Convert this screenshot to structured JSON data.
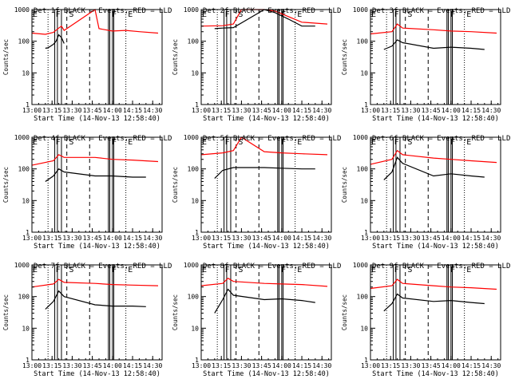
{
  "figure": {
    "x_ticks": [
      "13:00",
      "13:15",
      "13:30",
      "13:45",
      "14:00",
      "14:15",
      "14:30"
    ],
    "y_ticks": [
      "1",
      "10",
      "100",
      "1000"
    ],
    "colors": {
      "events": "#000000",
      "lld": "#ff0000",
      "axes": "#000000"
    }
  },
  "chart_data": [
    {
      "type": "line",
      "title": "Det 1f BLACK = Events, RED = LLD",
      "xlabel": "Start Time (14-Nov-13 12:58:40)",
      "ylabel": "Counts/sec",
      "yscale": "log",
      "xlim": [
        "13:00",
        "14:37"
      ],
      "ylim": [
        1,
        1000
      ],
      "band_labels": [
        "E",
        "F",
        "S",
        "F",
        "E"
      ],
      "series": [
        {
          "name": "BLACK = Events",
          "x": [
            "13:10",
            "13:12",
            "13:14",
            "13:16",
            "13:18",
            "13:20",
            "13:22",
            "13:24"
          ],
          "y": [
            60,
            62,
            70,
            80,
            100,
            160,
            130,
            85
          ]
        },
        {
          "name": "RED = LLD",
          "x": [
            "13:00",
            "13:10",
            "13:16",
            "13:20",
            "13:22",
            "13:24",
            "13:47",
            "13:50",
            "14:00",
            "14:10",
            "14:20",
            "14:34"
          ],
          "y": [
            180,
            165,
            190,
            260,
            300,
            220,
            1000,
            250,
            210,
            220,
            200,
            180
          ]
        }
      ]
    },
    {
      "type": "line",
      "title": "Det 2f BLACK = Events, RED = LLD",
      "xlabel": "Start Time (14-Nov-13 12:58:40)",
      "ylabel": "Counts/sec",
      "yscale": "log",
      "xlim": [
        "13:00",
        "14:37"
      ],
      "ylim": [
        1,
        1000
      ],
      "band_labels": [
        "E",
        "F",
        "S",
        "F",
        "E"
      ],
      "series": [
        {
          "name": "BLACK = Events",
          "x": [
            "13:10",
            "13:16",
            "13:24",
            "13:47",
            "13:55",
            "14:05",
            "14:15",
            "14:25"
          ],
          "y": [
            250,
            260,
            270,
            1000,
            800,
            500,
            300,
            300
          ]
        },
        {
          "name": "RED = LLD",
          "x": [
            "13:00",
            "13:16",
            "13:24",
            "13:30",
            "13:47",
            "13:55",
            "14:05",
            "14:15",
            "14:34"
          ],
          "y": [
            300,
            310,
            350,
            1000,
            1000,
            900,
            600,
            400,
            350
          ]
        }
      ]
    },
    {
      "type": "line",
      "title": "Det 3f BLACK = Events, RED = LLD",
      "xlabel": "Start Time (14-Nov-13 12:58:40)",
      "ylabel": "Counts/sec",
      "yscale": "log",
      "xlim": [
        "13:00",
        "14:37"
      ],
      "ylim": [
        1,
        1000
      ],
      "band_labels": [
        "E",
        "F",
        "S",
        "F",
        "E"
      ],
      "series": [
        {
          "name": "BLACK = Events",
          "x": [
            "13:10",
            "13:16",
            "13:20",
            "13:24",
            "13:47",
            "14:00",
            "14:15",
            "14:25"
          ],
          "y": [
            55,
            70,
            110,
            90,
            60,
            65,
            60,
            55
          ]
        },
        {
          "name": "RED = LLD",
          "x": [
            "13:00",
            "13:16",
            "13:20",
            "13:24",
            "13:47",
            "14:00",
            "14:15",
            "14:34"
          ],
          "y": [
            170,
            200,
            350,
            260,
            230,
            210,
            200,
            180
          ]
        }
      ]
    },
    {
      "type": "line",
      "title": "Det 4f BLACK = Events, RED = LLD",
      "xlabel": "Start Time (14-Nov-13 12:58:40)",
      "ylabel": "Counts/sec",
      "yscale": "log",
      "xlim": [
        "13:00",
        "14:37"
      ],
      "ylim": [
        1,
        1000
      ],
      "band_labels": [
        "E",
        "F",
        "S",
        "F",
        "E"
      ],
      "series": [
        {
          "name": "BLACK = Events",
          "x": [
            "13:10",
            "13:16",
            "13:20",
            "13:24",
            "13:47",
            "14:00",
            "14:15",
            "14:25"
          ],
          "y": [
            40,
            60,
            100,
            80,
            60,
            60,
            55,
            55
          ]
        },
        {
          "name": "RED = LLD",
          "x": [
            "13:00",
            "13:16",
            "13:20",
            "13:24",
            "13:47",
            "14:00",
            "14:15",
            "14:34"
          ],
          "y": [
            130,
            180,
            280,
            230,
            230,
            200,
            190,
            170
          ]
        }
      ]
    },
    {
      "type": "line",
      "title": "Det 5f BLACK = Events, RED = LLD",
      "xlabel": "Start Time (14-Nov-13 12:58:40)",
      "ylabel": "Counts/sec",
      "yscale": "log",
      "xlim": [
        "13:00",
        "14:37"
      ],
      "ylim": [
        1,
        1000
      ],
      "band_labels": [
        "E",
        "F",
        "S",
        "F",
        "E"
      ],
      "series": [
        {
          "name": "BLACK = Events",
          "x": [
            "13:10",
            "13:16",
            "13:24",
            "13:47",
            "14:00",
            "14:15",
            "14:25"
          ],
          "y": [
            50,
            90,
            110,
            110,
            105,
            100,
            100
          ]
        },
        {
          "name": "RED = LLD",
          "x": [
            "13:00",
            "13:16",
            "13:24",
            "13:30",
            "13:47",
            "14:00",
            "14:15",
            "14:34"
          ],
          "y": [
            280,
            320,
            380,
            1000,
            350,
            320,
            300,
            280
          ]
        }
      ]
    },
    {
      "type": "line",
      "title": "Det 6f BLACK = Events, RED = LLD",
      "xlabel": "Start Time (14-Nov-13 12:58:40)",
      "ylabel": "Counts/sec",
      "yscale": "log",
      "xlim": [
        "13:00",
        "14:37"
      ],
      "ylim": [
        1,
        1000
      ],
      "band_labels": [
        "E",
        "F",
        "S",
        "F",
        "E"
      ],
      "series": [
        {
          "name": "BLACK = Events",
          "x": [
            "13:10",
            "13:16",
            "13:20",
            "13:24",
            "13:47",
            "14:00",
            "14:15",
            "14:25"
          ],
          "y": [
            45,
            80,
            230,
            150,
            60,
            70,
            60,
            55
          ]
        },
        {
          "name": "RED = LLD",
          "x": [
            "13:00",
            "13:16",
            "13:20",
            "13:24",
            "13:47",
            "14:00",
            "14:15",
            "14:34"
          ],
          "y": [
            140,
            200,
            380,
            280,
            220,
            200,
            180,
            160
          ]
        }
      ]
    },
    {
      "type": "line",
      "title": "Det 7f BLACK = Events, RED = LLD",
      "xlabel": "Start Time (14-Nov-13 12:58:40)",
      "ylabel": "Counts/sec",
      "yscale": "log",
      "xlim": [
        "13:00",
        "14:37"
      ],
      "ylim": [
        1,
        1000
      ],
      "band_labels": [
        "E",
        "F",
        "S",
        "F",
        "E"
      ],
      "series": [
        {
          "name": "BLACK = Events",
          "x": [
            "13:10",
            "13:16",
            "13:20",
            "13:24",
            "13:47",
            "14:00",
            "14:15",
            "14:25"
          ],
          "y": [
            40,
            70,
            150,
            100,
            55,
            50,
            50,
            48
          ]
        },
        {
          "name": "RED = LLD",
          "x": [
            "13:00",
            "13:16",
            "13:20",
            "13:24",
            "13:47",
            "14:00",
            "14:15",
            "14:34"
          ],
          "y": [
            200,
            250,
            350,
            280,
            260,
            240,
            230,
            220
          ]
        }
      ]
    },
    {
      "type": "line",
      "title": "Det 8f BLACK = Events, RED = LLD",
      "xlabel": "Start Time (14-Nov-13 12:58:40)",
      "ylabel": "Counts/sec",
      "yscale": "log",
      "xlim": [
        "13:00",
        "14:37"
      ],
      "ylim": [
        1,
        1000
      ],
      "band_labels": [
        "E",
        "F",
        "S",
        "F",
        "E"
      ],
      "series": [
        {
          "name": "BLACK = Events",
          "x": [
            "13:10",
            "13:16",
            "13:20",
            "13:24",
            "13:47",
            "14:00",
            "14:15",
            "14:25"
          ],
          "y": [
            30,
            80,
            170,
            110,
            80,
            85,
            75,
            65
          ]
        },
        {
          "name": "RED = LLD",
          "x": [
            "13:00",
            "13:16",
            "13:20",
            "13:24",
            "13:47",
            "14:00",
            "14:15",
            "14:34"
          ],
          "y": [
            220,
            260,
            380,
            300,
            260,
            250,
            240,
            210
          ]
        }
      ]
    },
    {
      "type": "line",
      "title": "Det 9f BLACK = Events, RED = LLD",
      "xlabel": "Start Time (14-Nov-13 12:58:40)",
      "ylabel": "Counts/sec",
      "yscale": "log",
      "xlim": [
        "13:00",
        "14:37"
      ],
      "ylim": [
        1,
        1000
      ],
      "band_labels": [
        "E",
        "F",
        "S",
        "F",
        "E"
      ],
      "series": [
        {
          "name": "BLACK = Events",
          "x": [
            "13:10",
            "13:16",
            "13:20",
            "13:24",
            "13:47",
            "14:00",
            "14:15",
            "14:25"
          ],
          "y": [
            35,
            60,
            120,
            90,
            70,
            75,
            65,
            60
          ]
        },
        {
          "name": "RED = LLD",
          "x": [
            "13:00",
            "13:16",
            "13:20",
            "13:24",
            "13:47",
            "14:00",
            "14:15",
            "14:34"
          ],
          "y": [
            180,
            220,
            350,
            260,
            220,
            200,
            190,
            170
          ]
        }
      ]
    }
  ]
}
